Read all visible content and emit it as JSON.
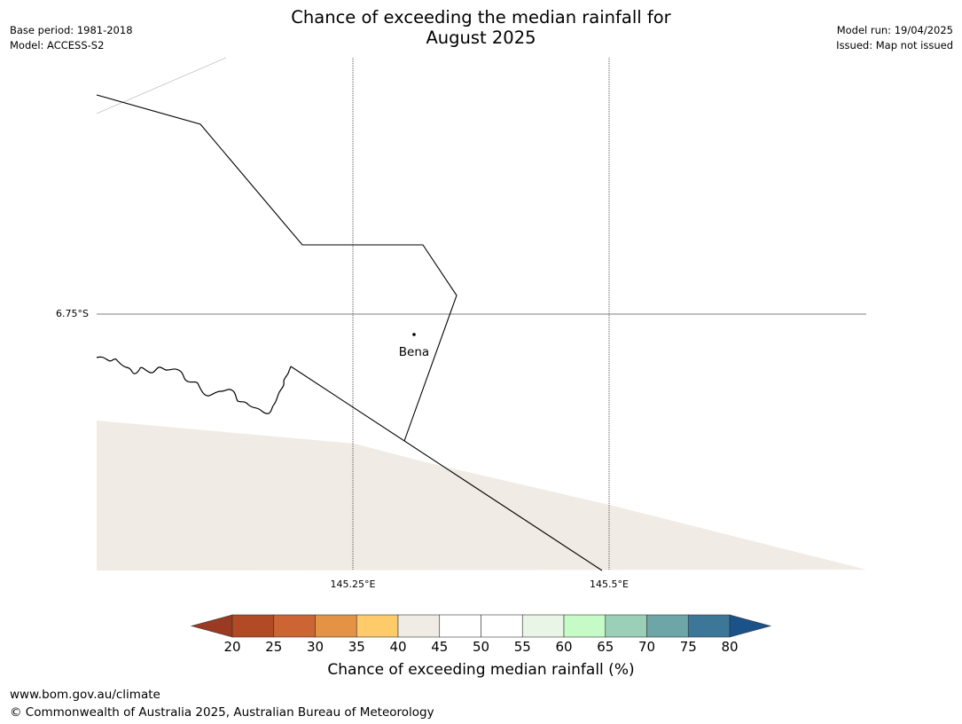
{
  "header": {
    "title_line1": "Chance of exceeding the median rainfall for",
    "title_line2": "August 2025",
    "base_period": "Base period: 1981-2018",
    "model": "Model: ACCESS-S2",
    "model_run": "Model run: 19/04/2025",
    "issued": "Issued: Map not issued"
  },
  "map": {
    "latitude_labels": [
      "6.75°S"
    ],
    "longitude_labels": [
      "145.25°E",
      "145.5°E"
    ],
    "places": [
      {
        "name": "Bena"
      }
    ],
    "region_fill_color": "#f0ebe4"
  },
  "colorbar": {
    "label": "Chance of exceeding median rainfall (%)",
    "ticks": [
      "20",
      "25",
      "30",
      "35",
      "40",
      "45",
      "50",
      "55",
      "60",
      "65",
      "70",
      "75",
      "80"
    ],
    "colors": [
      "#9b3a22",
      "#b24a25",
      "#cc6433",
      "#e39343",
      "#fdcb69",
      "#f0ebe4",
      "#ffffff",
      "#ffffff",
      "#e8f5e7",
      "#c6fbc7",
      "#9ccfb7",
      "#6ea5a7",
      "#3d7798",
      "#1a5289"
    ]
  },
  "footer": {
    "url": "www.bom.gov.au/climate",
    "copyright": "© Commonwealth of Australia 2025, Australian Bureau of Meteorology"
  }
}
